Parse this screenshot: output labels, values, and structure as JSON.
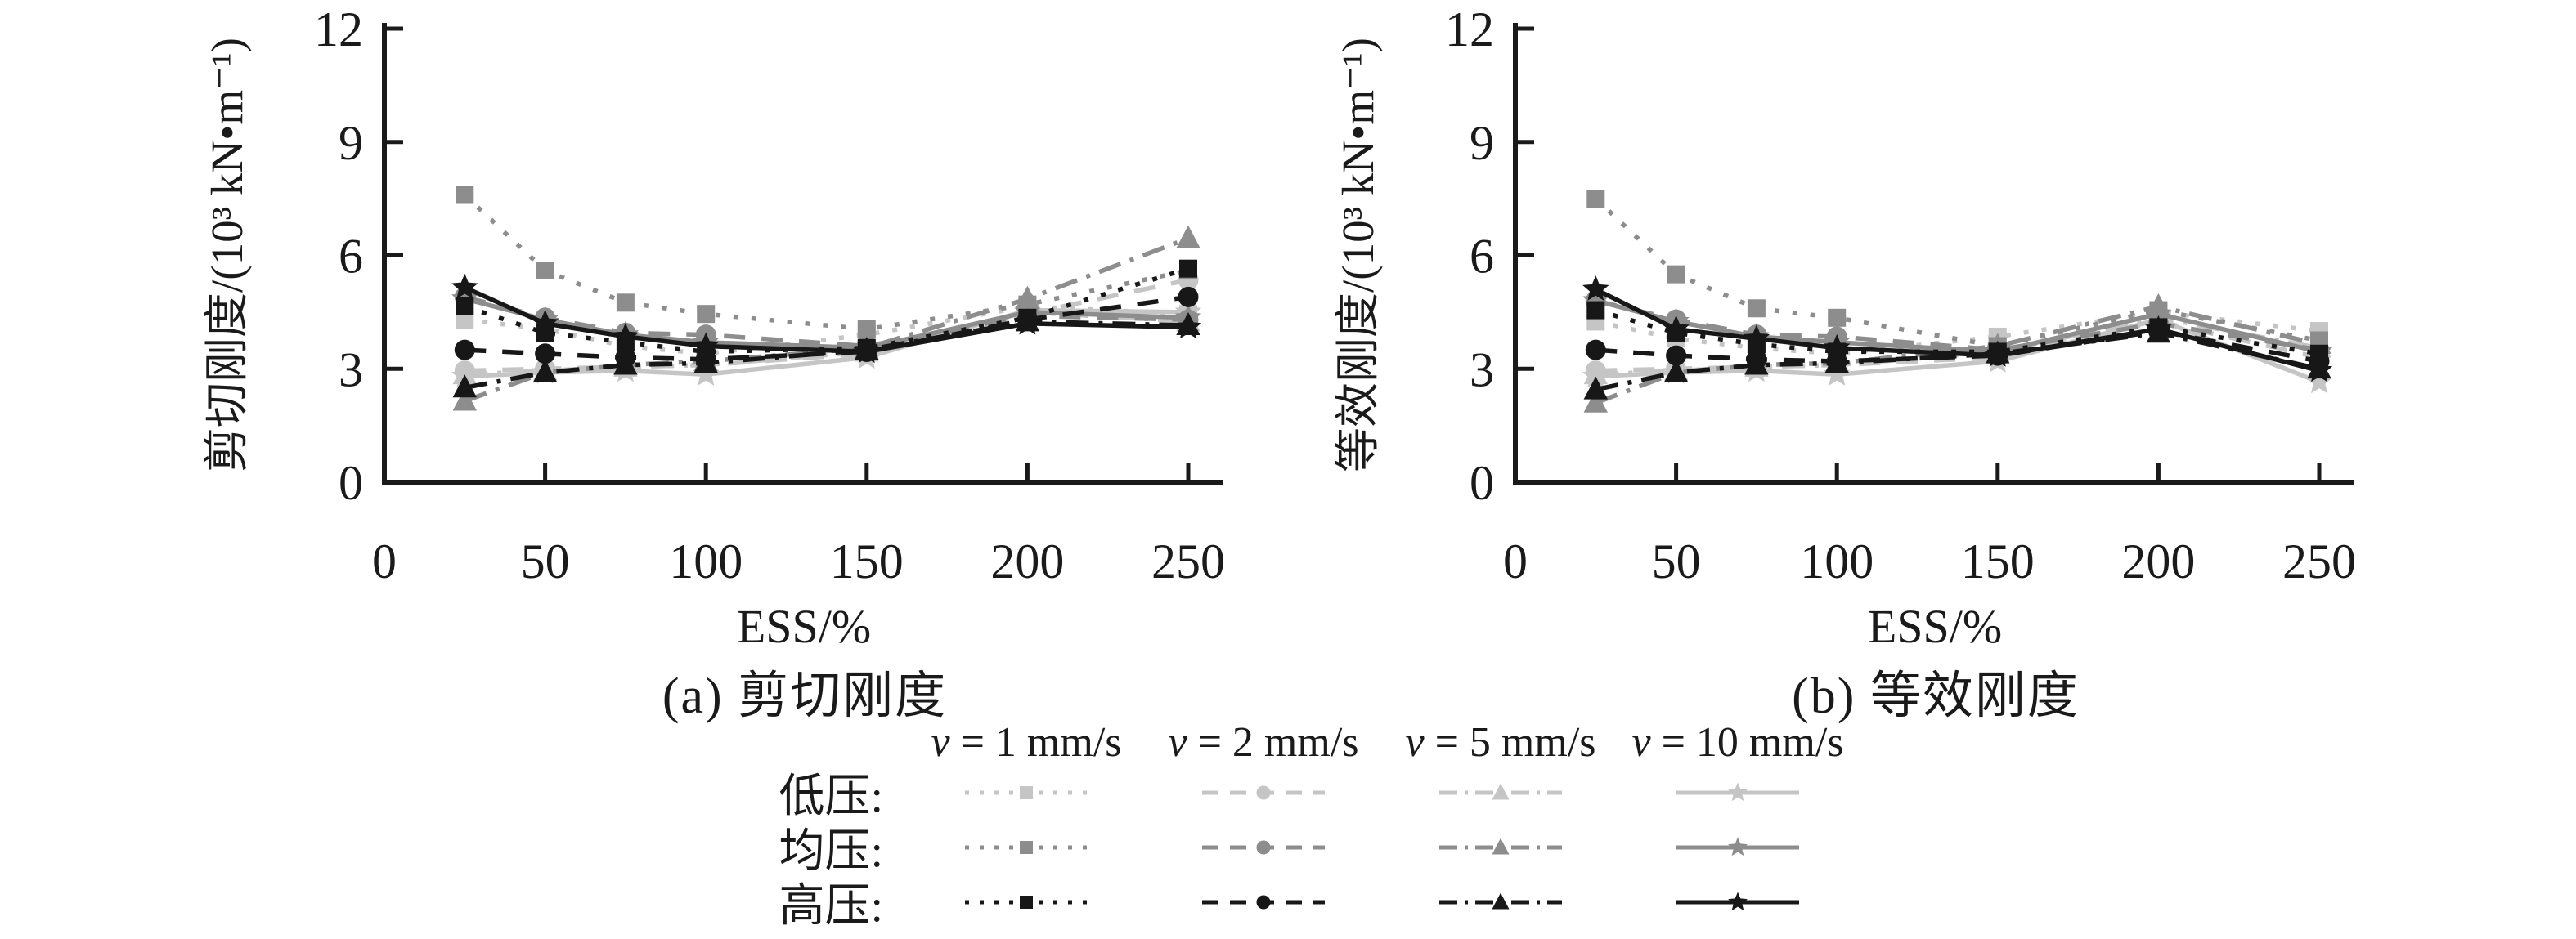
{
  "figure": {
    "background": "#ffffff",
    "axis_color": "#1a1a1a",
    "captions": {
      "a": "(a) 剪切刚度",
      "b": "(b) 等效刚度"
    }
  },
  "legend": {
    "position": "bottom-center",
    "columns": [
      {
        "v": "v",
        "rest": " = 1 mm/s"
      },
      {
        "v": "v",
        "rest": " = 2 mm/s"
      },
      {
        "v": "v",
        "rest": " = 5 mm/s"
      },
      {
        "v": "v",
        "rest": " = 10 mm/s"
      }
    ],
    "rows": [
      {
        "label": "低压:",
        "color": "#c5c5c5"
      },
      {
        "label": "均压:",
        "color": "#8d8d8d"
      },
      {
        "label": "高压:",
        "color": "#171717"
      }
    ]
  },
  "styles": {
    "speeds": [
      {
        "id": "v1",
        "marker": "square",
        "dash": "dotted"
      },
      {
        "id": "v2",
        "marker": "circle",
        "dash": "dashed"
      },
      {
        "id": "v5",
        "marker": "triangle",
        "dash": "dashdot"
      },
      {
        "id": "v10",
        "marker": "star",
        "dash": "solid"
      }
    ]
  },
  "chart_data": [
    {
      "type": "line",
      "title": "(a) 剪切刚度",
      "xlabel": "ESS/%",
      "ylabel": "剪切刚度/(10³ kN•m⁻¹)",
      "xlim": [
        0,
        260
      ],
      "ylim": [
        0,
        12
      ],
      "xticks": [
        0,
        50,
        100,
        150,
        200,
        250
      ],
      "yticks": [
        0,
        3,
        6,
        9,
        12
      ],
      "grid": false,
      "x": [
        25,
        50,
        75,
        100,
        150,
        200,
        250
      ],
      "series": [
        {
          "group": "低压",
          "speed": "v = 1 mm/s",
          "color": "#c5c5c5",
          "marker": "square",
          "dash": "dotted",
          "values": [
            4.3,
            4.05,
            3.6,
            3.4,
            3.9,
            4.65,
            4.45
          ]
        },
        {
          "group": "低压",
          "speed": "v = 2 mm/s",
          "color": "#c5c5c5",
          "marker": "circle",
          "dash": "dashed",
          "values": [
            2.95,
            3.0,
            3.05,
            3.1,
            3.4,
            4.45,
            5.35
          ]
        },
        {
          "group": "低压",
          "speed": "v = 5 mm/s",
          "color": "#c5c5c5",
          "marker": "triangle",
          "dash": "dashdot",
          "values": [
            2.85,
            2.95,
            3.05,
            3.1,
            3.45,
            4.5,
            4.25
          ]
        },
        {
          "group": "低压",
          "speed": "v = 10 mm/s",
          "color": "#c5c5c5",
          "marker": "star",
          "dash": "solid",
          "values": [
            2.8,
            2.9,
            2.95,
            2.85,
            3.3,
            4.55,
            4.5
          ]
        },
        {
          "group": "均压",
          "speed": "v = 1 mm/s",
          "color": "#8d8d8d",
          "marker": "square",
          "dash": "dotted",
          "values": [
            7.6,
            5.6,
            4.75,
            4.45,
            4.05,
            4.7,
            5.6
          ]
        },
        {
          "group": "均压",
          "speed": "v = 2 mm/s",
          "color": "#8d8d8d",
          "marker": "circle",
          "dash": "dashed",
          "values": [
            4.9,
            4.35,
            3.95,
            3.9,
            3.6,
            4.4,
            4.3
          ]
        },
        {
          "group": "均压",
          "speed": "v = 5 mm/s",
          "color": "#8d8d8d",
          "marker": "triangle",
          "dash": "dashdot",
          "values": [
            2.15,
            2.9,
            3.1,
            3.2,
            3.55,
            4.85,
            6.45
          ]
        },
        {
          "group": "均压",
          "speed": "v = 10 mm/s",
          "color": "#8d8d8d",
          "marker": "star",
          "dash": "solid",
          "values": [
            4.85,
            4.3,
            3.9,
            3.7,
            3.55,
            4.5,
            4.35
          ]
        },
        {
          "group": "高压",
          "speed": "v = 1 mm/s",
          "color": "#171717",
          "marker": "square",
          "dash": "dotted",
          "values": [
            4.65,
            3.95,
            3.7,
            3.45,
            3.55,
            4.35,
            5.65
          ]
        },
        {
          "group": "高压",
          "speed": "v = 2 mm/s",
          "color": "#171717",
          "marker": "circle",
          "dash": "dashed",
          "values": [
            3.5,
            3.4,
            3.3,
            3.25,
            3.45,
            4.3,
            4.9
          ]
        },
        {
          "group": "高压",
          "speed": "v = 5 mm/s",
          "color": "#171717",
          "marker": "triangle",
          "dash": "dashdot",
          "values": [
            2.5,
            2.9,
            3.1,
            3.15,
            3.5,
            4.25,
            4.15
          ]
        },
        {
          "group": "高压",
          "speed": "v = 10 mm/s",
          "color": "#171717",
          "marker": "star",
          "dash": "solid",
          "values": [
            5.15,
            4.2,
            3.85,
            3.6,
            3.45,
            4.2,
            4.1
          ]
        }
      ]
    },
    {
      "type": "line",
      "title": "(b) 等效刚度",
      "xlabel": "ESS/%",
      "ylabel": "等效刚度/(10³ kN•m⁻¹)",
      "xlim": [
        0,
        260
      ],
      "ylim": [
        0,
        12
      ],
      "xticks": [
        0,
        50,
        100,
        150,
        200,
        250
      ],
      "yticks": [
        0,
        3,
        6,
        9,
        12
      ],
      "grid": false,
      "x": [
        25,
        50,
        75,
        100,
        150,
        200,
        250
      ],
      "series": [
        {
          "group": "低压",
          "speed": "v = 1 mm/s",
          "color": "#c5c5c5",
          "marker": "square",
          "dash": "dotted",
          "values": [
            4.25,
            3.8,
            3.55,
            3.4,
            3.85,
            4.5,
            4.0
          ]
        },
        {
          "group": "低压",
          "speed": "v = 2 mm/s",
          "color": "#c5c5c5",
          "marker": "circle",
          "dash": "dashed",
          "values": [
            2.95,
            3.0,
            3.05,
            3.1,
            3.3,
            4.25,
            3.3
          ]
        },
        {
          "group": "低压",
          "speed": "v = 5 mm/s",
          "color": "#c5c5c5",
          "marker": "triangle",
          "dash": "dashdot",
          "values": [
            2.85,
            2.95,
            3.05,
            3.1,
            3.45,
            4.35,
            3.55
          ]
        },
        {
          "group": "低压",
          "speed": "v = 10 mm/s",
          "color": "#c5c5c5",
          "marker": "star",
          "dash": "solid",
          "values": [
            2.8,
            2.9,
            2.95,
            2.85,
            3.2,
            4.3,
            2.65
          ]
        },
        {
          "group": "均压",
          "speed": "v = 1 mm/s",
          "color": "#8d8d8d",
          "marker": "square",
          "dash": "dotted",
          "values": [
            7.5,
            5.5,
            4.6,
            4.35,
            3.6,
            4.55,
            3.75
          ]
        },
        {
          "group": "均压",
          "speed": "v = 2 mm/s",
          "color": "#8d8d8d",
          "marker": "circle",
          "dash": "dashed",
          "values": [
            4.8,
            4.3,
            3.9,
            3.85,
            3.5,
            4.2,
            3.5
          ]
        },
        {
          "group": "均压",
          "speed": "v = 5 mm/s",
          "color": "#8d8d8d",
          "marker": "triangle",
          "dash": "dashdot",
          "values": [
            2.1,
            2.9,
            3.1,
            3.15,
            3.6,
            4.65,
            3.65
          ]
        },
        {
          "group": "均压",
          "speed": "v = 10 mm/s",
          "color": "#8d8d8d",
          "marker": "star",
          "dash": "solid",
          "values": [
            4.8,
            4.25,
            3.85,
            3.7,
            3.45,
            4.45,
            3.45
          ]
        },
        {
          "group": "高压",
          "speed": "v = 1 mm/s",
          "color": "#171717",
          "marker": "square",
          "dash": "dotted",
          "values": [
            4.55,
            3.95,
            3.65,
            3.45,
            3.45,
            4.1,
            3.4
          ]
        },
        {
          "group": "高压",
          "speed": "v = 2 mm/s",
          "color": "#171717",
          "marker": "circle",
          "dash": "dashed",
          "values": [
            3.5,
            3.35,
            3.25,
            3.2,
            3.35,
            4.0,
            3.2
          ]
        },
        {
          "group": "高压",
          "speed": "v = 5 mm/s",
          "color": "#171717",
          "marker": "triangle",
          "dash": "dashdot",
          "values": [
            2.45,
            2.9,
            3.1,
            3.15,
            3.4,
            3.95,
            3.0
          ]
        },
        {
          "group": "高压",
          "speed": "v = 10 mm/s",
          "color": "#171717",
          "marker": "star",
          "dash": "solid",
          "values": [
            5.1,
            4.05,
            3.8,
            3.55,
            3.35,
            4.05,
            2.95
          ]
        }
      ]
    }
  ]
}
